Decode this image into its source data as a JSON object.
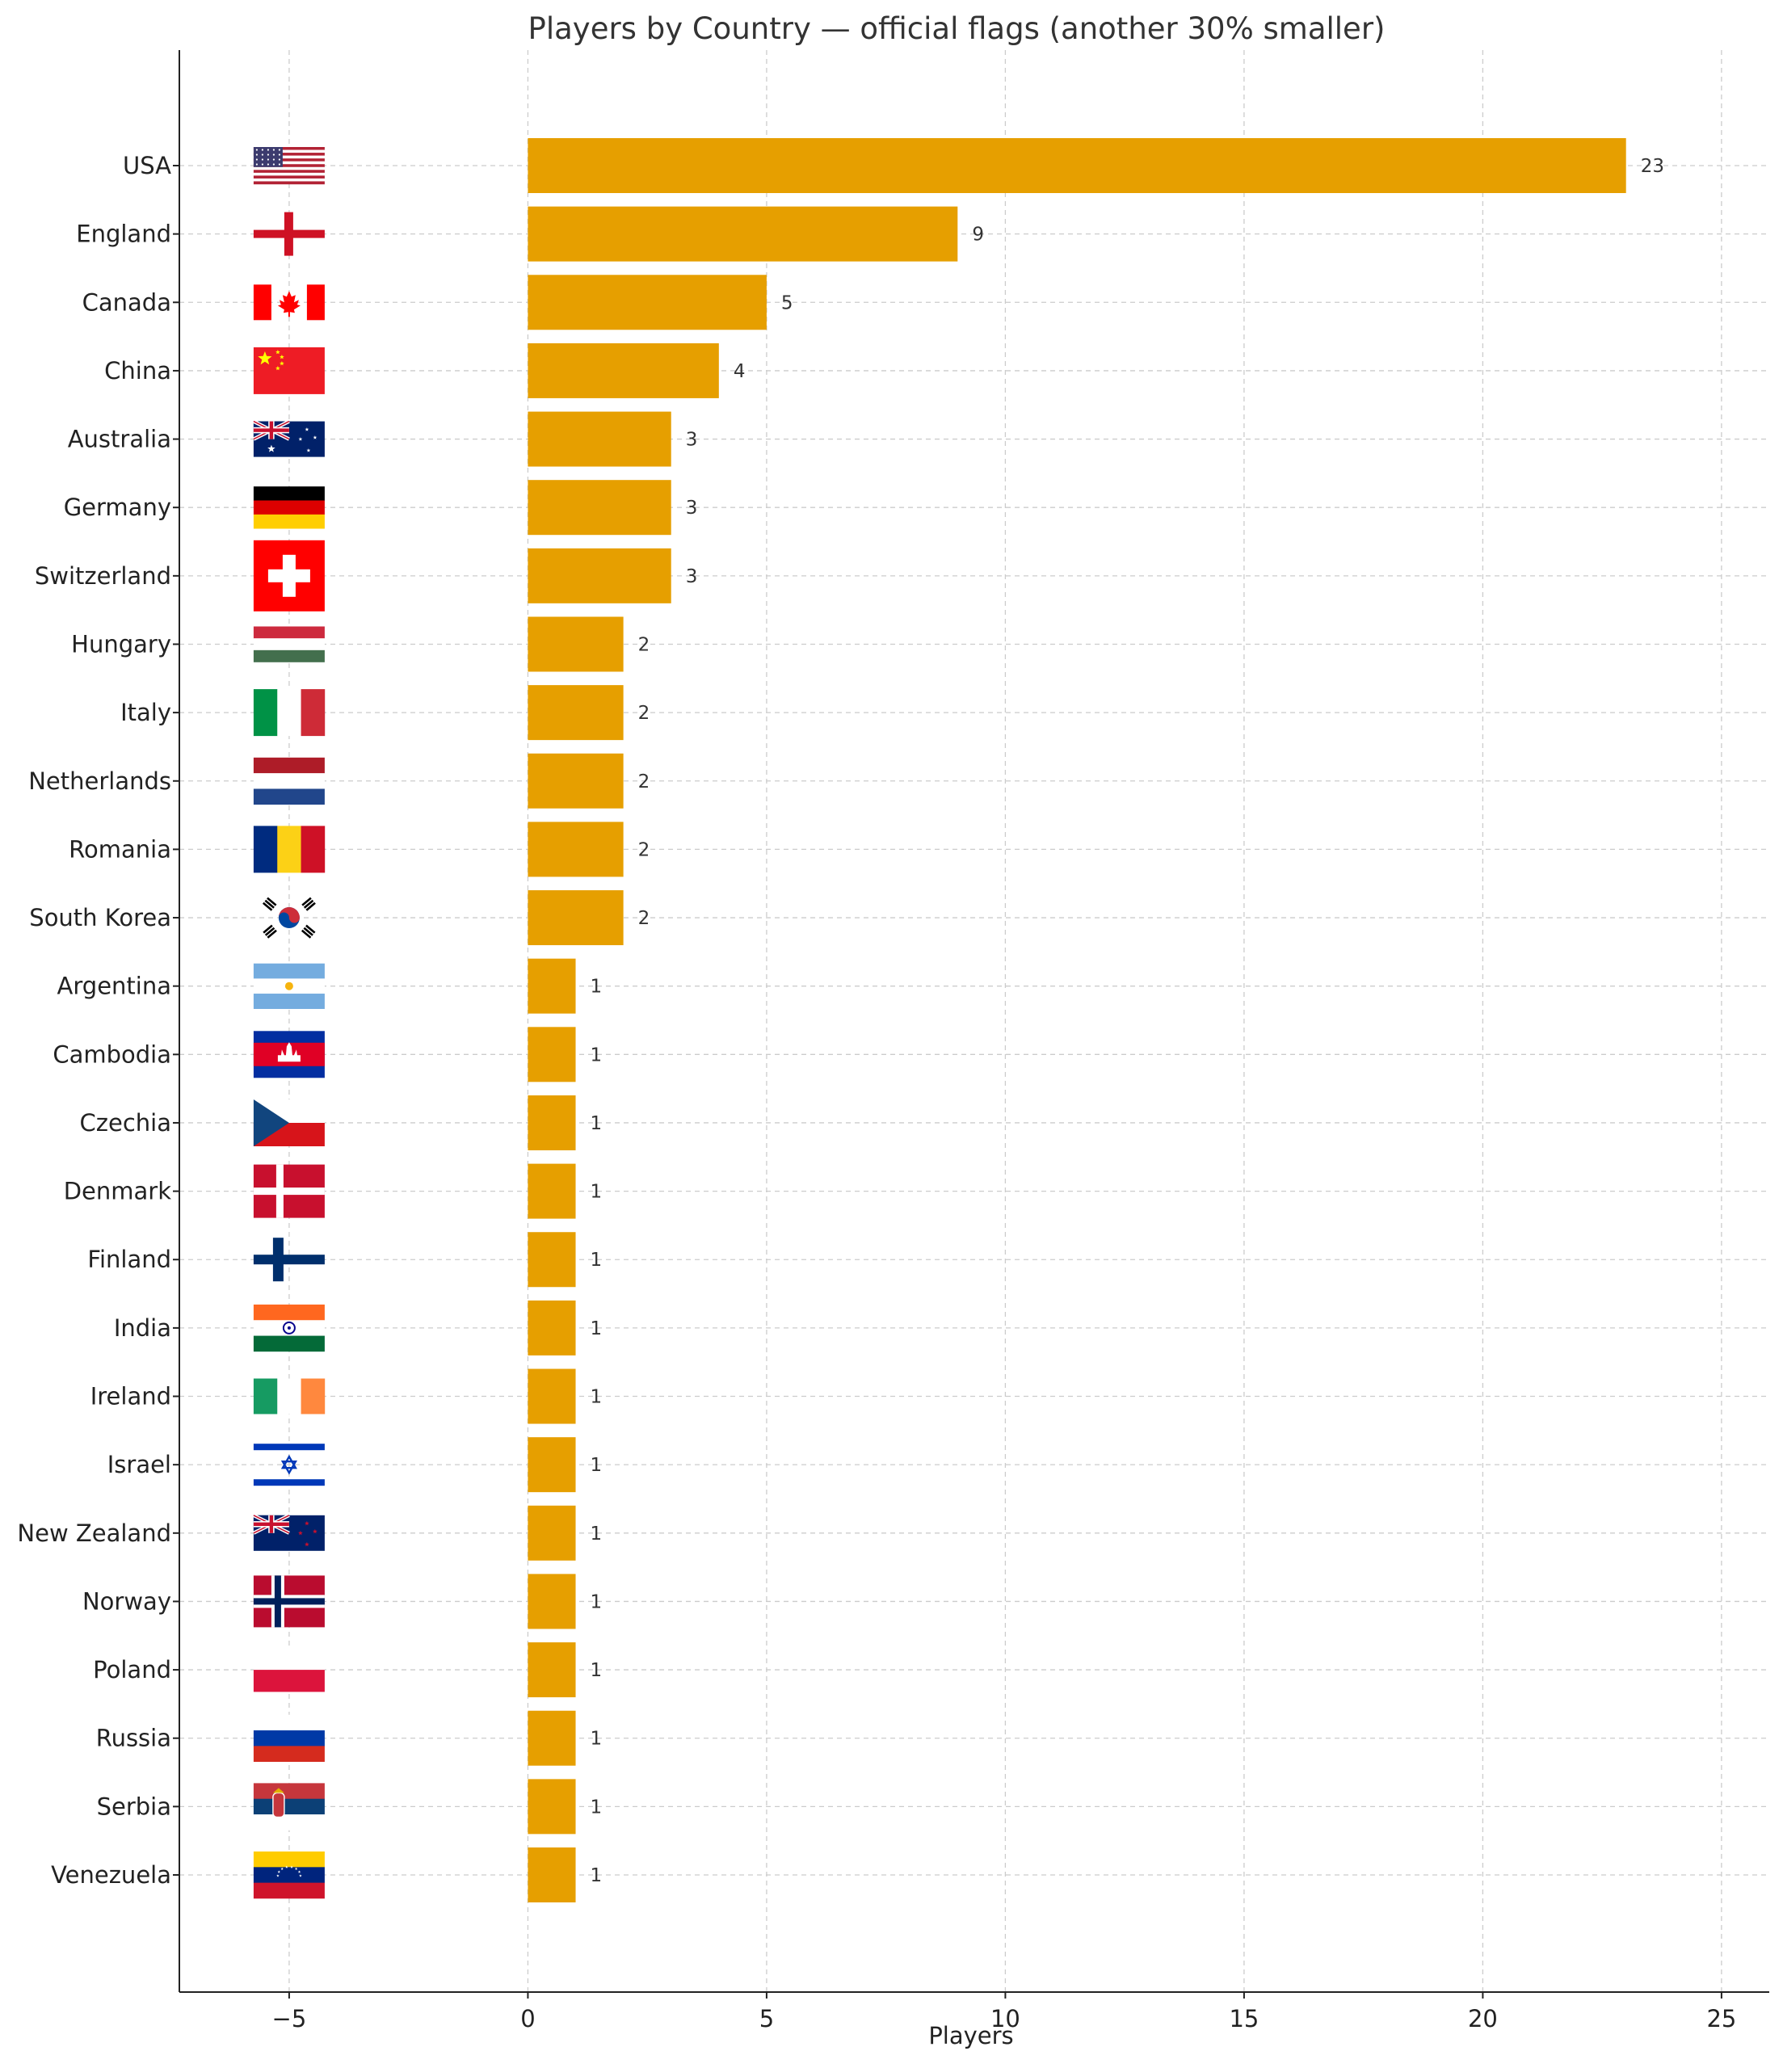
{
  "chart_data": {
    "type": "bar",
    "orientation": "horizontal",
    "title": "Players by Country — official flags (another 30% smaller)",
    "xlabel": "Players",
    "ylabel": "",
    "xlim": [
      -7.3,
      26
    ],
    "xticks": [
      -5,
      0,
      5,
      10,
      15,
      20,
      25
    ],
    "xtick_labels": [
      "−5",
      "0",
      "5",
      "10",
      "15",
      "20",
      "25"
    ],
    "grid": true,
    "bar_color": "#E69F00",
    "categories": [
      "USA",
      "England",
      "Canada",
      "China",
      "Australia",
      "Germany",
      "Switzerland",
      "Hungary",
      "Italy",
      "Netherlands",
      "Romania",
      "South Korea",
      "Argentina",
      "Cambodia",
      "Czechia",
      "Denmark",
      "Finland",
      "India",
      "Ireland",
      "Israel",
      "New Zealand",
      "Norway",
      "Poland",
      "Russia",
      "Serbia",
      "Venezuela"
    ],
    "values": [
      23,
      9,
      5,
      4,
      3,
      3,
      3,
      2,
      2,
      2,
      2,
      2,
      1,
      1,
      1,
      1,
      1,
      1,
      1,
      1,
      1,
      1,
      1,
      1,
      1,
      1
    ],
    "flag_x": -5,
    "flags": [
      "us-flag-icon",
      "england-flag-icon",
      "canada-flag-icon",
      "china-flag-icon",
      "australia-flag-icon",
      "germany-flag-icon",
      "switzerland-flag-icon",
      "hungary-flag-icon",
      "italy-flag-icon",
      "netherlands-flag-icon",
      "romania-flag-icon",
      "south-korea-flag-icon",
      "argentina-flag-icon",
      "cambodia-flag-icon",
      "czechia-flag-icon",
      "denmark-flag-icon",
      "finland-flag-icon",
      "india-flag-icon",
      "ireland-flag-icon",
      "israel-flag-icon",
      "new-zealand-flag-icon",
      "norway-flag-icon",
      "poland-flag-icon",
      "russia-flag-icon",
      "serbia-flag-icon",
      "venezuela-flag-icon"
    ]
  }
}
